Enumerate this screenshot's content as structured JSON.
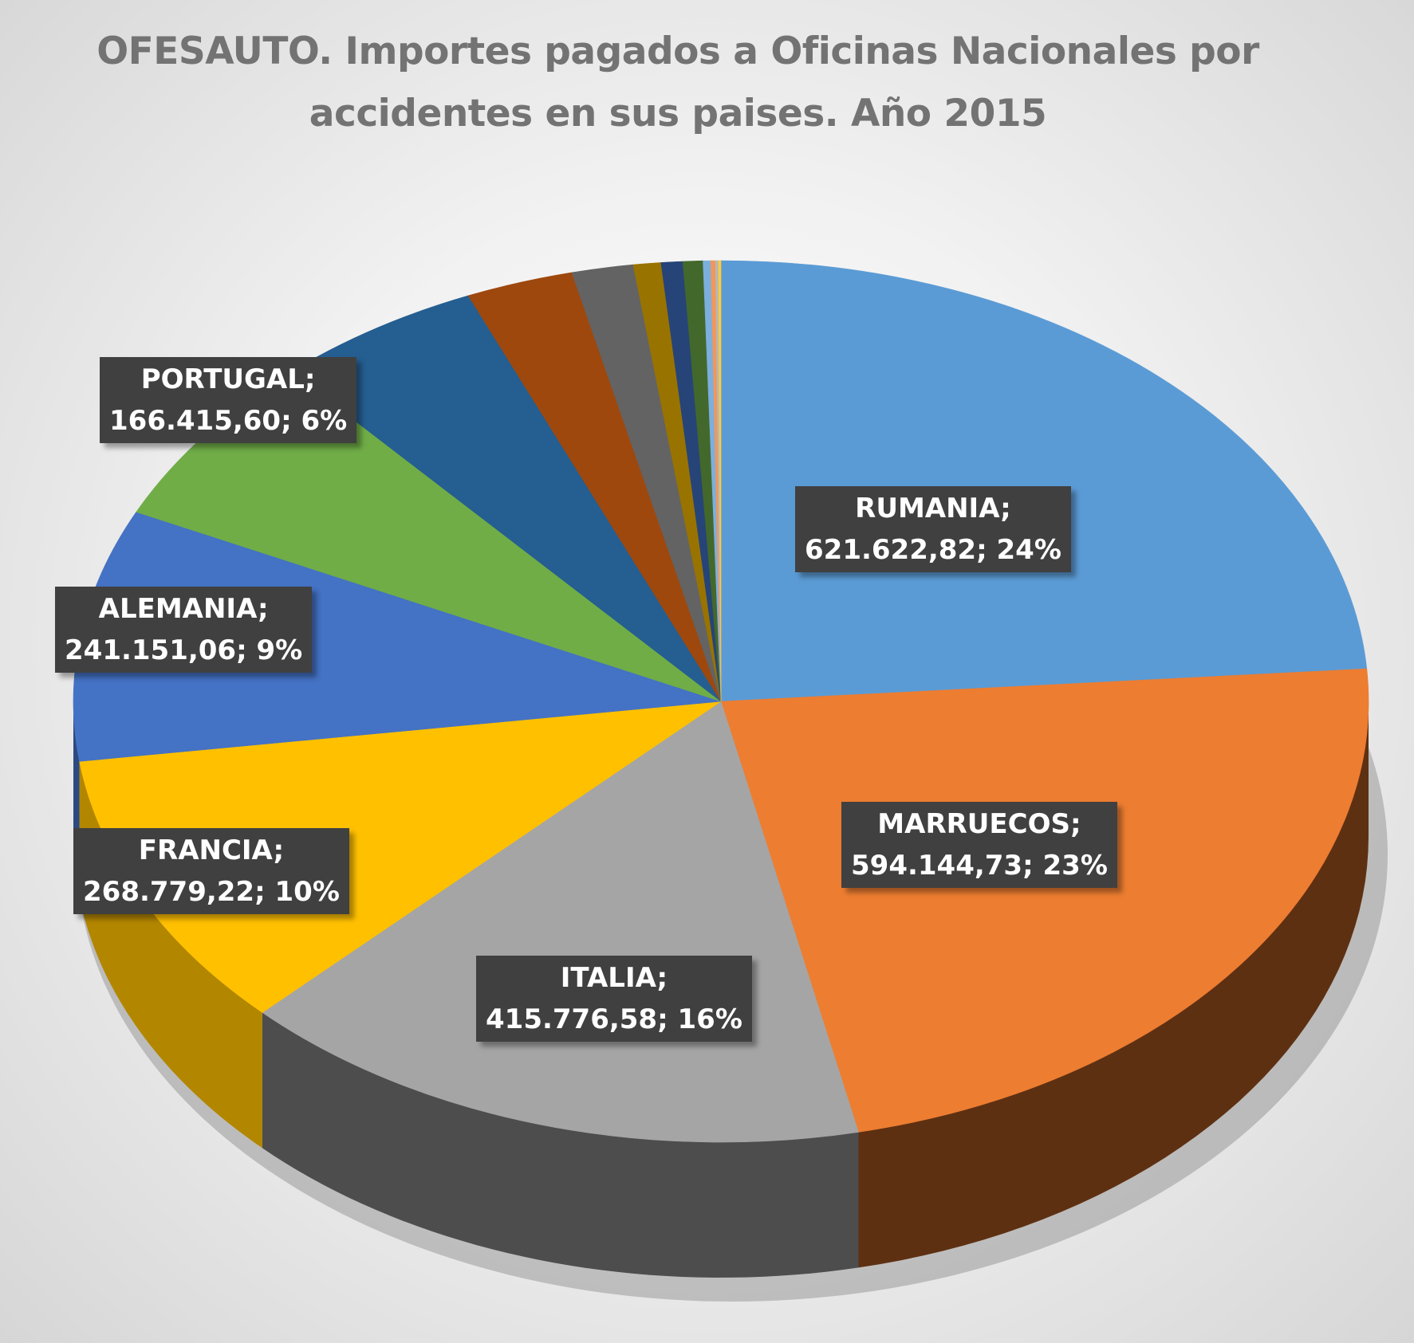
{
  "title": "OFESAUTO. Importes pagados a Oficinas Nacionales por accidentes en sus paises. Año  2015",
  "chart_data": {
    "type": "pie",
    "style": "3d",
    "slices": [
      {
        "name": "RUMANIA",
        "value": 621622.82,
        "value_text": "621.622,82",
        "percent": "24%",
        "color": "#5b9bd5",
        "side_color": "#3d6f9e",
        "labeled": true
      },
      {
        "name": "MARRUECOS",
        "value": 594144.73,
        "value_text": "594.144,73",
        "percent": "23%",
        "color": "#ed7d31",
        "side_color": "#5e3012",
        "labeled": true
      },
      {
        "name": "ITALIA",
        "value": 415776.58,
        "value_text": "415.776,58",
        "percent": "16%",
        "color": "#a5a5a5",
        "side_color": "#4d4d4d",
        "labeled": true
      },
      {
        "name": "FRANCIA",
        "value": 268779.22,
        "value_text": "268.779,22",
        "percent": "10%",
        "color": "#ffc000",
        "side_color": "#b38600",
        "labeled": true
      },
      {
        "name": "ALEMANIA",
        "value": 241151.06,
        "value_text": "241.151,06",
        "percent": "9%",
        "color": "#4472c4",
        "side_color": "#2b4a80",
        "labeled": true
      },
      {
        "name": "PORTUGAL",
        "value": 166415.6,
        "value_text": "166.415,60",
        "percent": "6%",
        "color": "#70ad47",
        "side_color": "#4a7530",
        "labeled": true
      },
      {
        "value": 135000,
        "color": "#255e91",
        "side_color": "#183e60",
        "labeled": false
      },
      {
        "value": 70000,
        "color": "#9e480e",
        "side_color": "#652e09",
        "labeled": false
      },
      {
        "value": 40000,
        "color": "#636363",
        "side_color": "#404040",
        "labeled": false
      },
      {
        "value": 18000,
        "color": "#997300",
        "side_color": "#664d00",
        "labeled": false
      },
      {
        "value": 14000,
        "color": "#264478",
        "side_color": "#182c4e",
        "labeled": false
      },
      {
        "value": 13000,
        "color": "#43682b",
        "side_color": "#2b441c",
        "labeled": false
      },
      {
        "value": 5000,
        "color": "#7cafdd",
        "side_color": "#5b82a6",
        "labeled": false
      },
      {
        "value": 3000,
        "color": "#f1975a",
        "side_color": "#b06d40",
        "labeled": false
      },
      {
        "value": 2000,
        "color": "#b7b7b7",
        "side_color": "#888888",
        "labeled": false
      },
      {
        "value": 1500,
        "color": "#ffcd33",
        "side_color": "#b38f1f",
        "labeled": false
      }
    ]
  }
}
